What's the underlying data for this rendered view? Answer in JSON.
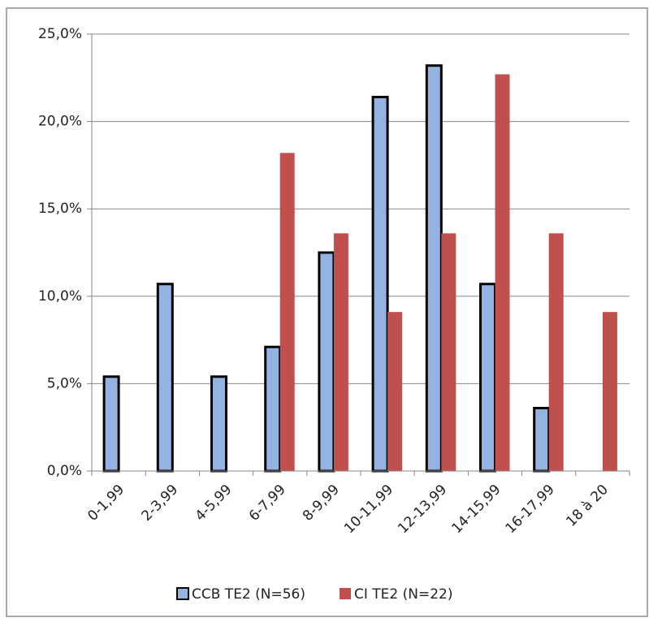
{
  "chart_data": {
    "type": "bar",
    "categories": [
      "0-1,99",
      "2-3,99",
      "4-5,99",
      "6-7,99",
      "8-9,99",
      "10-11,99",
      "12-13,99",
      "14-15,99",
      "16-17,99",
      "18 à 20"
    ],
    "series": [
      {
        "name": "CCB TE2 (N=56)",
        "color": "#95b3e0",
        "values": [
          5.4,
          10.7,
          5.4,
          7.1,
          12.5,
          21.4,
          23.2,
          10.7,
          3.6,
          0
        ]
      },
      {
        "name": "CI TE2 (N=22)",
        "color": "#c0504d",
        "values": [
          0,
          0,
          0,
          18.2,
          13.6,
          9.1,
          13.6,
          22.7,
          13.6,
          9.1
        ]
      }
    ],
    "ylim": [
      0,
      25
    ],
    "yticks": [
      {
        "value": 0,
        "label": "0,0%"
      },
      {
        "value": 5,
        "label": "5,0%"
      },
      {
        "value": 10,
        "label": "10,0%"
      },
      {
        "value": 15,
        "label": "15,0%"
      },
      {
        "value": 20,
        "label": "20,0%"
      },
      {
        "value": 25,
        "label": "25,0%"
      }
    ],
    "grid": true,
    "legend": "bottom"
  }
}
